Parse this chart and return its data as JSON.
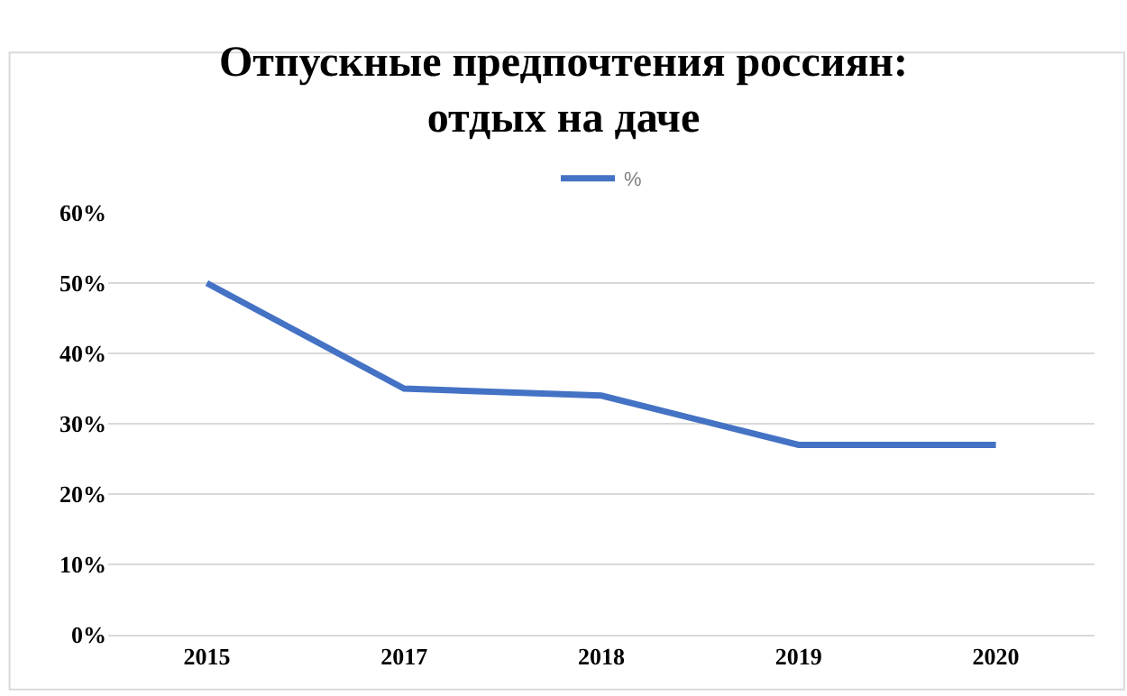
{
  "chart_data": {
    "type": "line",
    "title": "Отпускные предпочтения россиян:\nотдых на даче",
    "categories": [
      "2015",
      "2017",
      "2018",
      "2019",
      "2020"
    ],
    "series": [
      {
        "name": "%",
        "color": "#4472c4",
        "values": [
          50,
          35,
          34,
          27,
          27
        ]
      }
    ],
    "ylim": [
      0,
      60
    ],
    "yticks": [
      {
        "value": 0,
        "label": "0%"
      },
      {
        "value": 10,
        "label": "10%"
      },
      {
        "value": 20,
        "label": "20%"
      },
      {
        "value": 30,
        "label": "30%"
      },
      {
        "value": 40,
        "label": "40%"
      },
      {
        "value": 50,
        "label": "50%"
      },
      {
        "value": 60,
        "label": "60%"
      }
    ],
    "grid": "y",
    "legend": "top",
    "marker": "none",
    "line_style": "solid"
  }
}
